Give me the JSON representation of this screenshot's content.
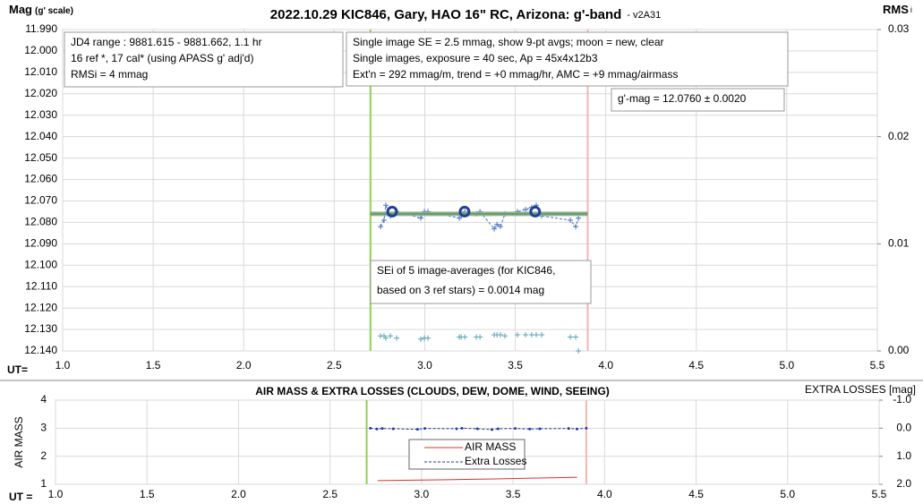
{
  "chart_data": [
    {
      "type": "line",
      "title": "2022.10.29 KIC846, Gary, HAO 16\" RC, Arizona: g'-band",
      "subtitle": "- v2A31",
      "y_label": "Mag",
      "y_label_sub": "(g' scale)",
      "y2_label": "RMS",
      "y2_label_sub": "i",
      "x_label": "UT=",
      "xlim": [
        1.0,
        5.5
      ],
      "xticks": [
        {
          "value": 1.0,
          "label": "1.0"
        },
        1.5,
        {
          "value": 2.0,
          "label": "2.0"
        },
        2.5,
        {
          "value": 3.0,
          "label": "3.0"
        },
        3.5,
        {
          "value": 4.0,
          "label": "4.0"
        },
        4.5,
        {
          "value": 5.0,
          "label": "5.0"
        },
        5.5
      ],
      "ylim": [
        12.14,
        11.99
      ],
      "yticks": [
        {
          "value": 11.99,
          "label": "11.990"
        },
        {
          "value": 12.0,
          "label": "12.000"
        },
        {
          "value": 12.01,
          "label": "12.010"
        },
        {
          "value": 12.02,
          "label": "12.020"
        },
        {
          "value": 12.03,
          "label": "12.030"
        },
        {
          "value": 12.04,
          "label": "12.040"
        },
        {
          "value": 12.05,
          "label": "12.050"
        },
        {
          "value": 12.06,
          "label": "12.060"
        },
        {
          "value": 12.07,
          "label": "12.070"
        },
        {
          "value": 12.08,
          "label": "12.080"
        },
        {
          "value": 12.09,
          "label": "12.090"
        },
        {
          "value": 12.1,
          "label": "12.100"
        },
        {
          "value": 12.11,
          "label": "12.110"
        },
        {
          "value": 12.12,
          "label": "12.120"
        },
        {
          "value": 12.13,
          "label": "12.130"
        },
        {
          "value": 12.14,
          "label": "12.140"
        }
      ],
      "y2lim": [
        0,
        0.03
      ],
      "y2ticks": [
        {
          "value": 0,
          "label": "0.00"
        },
        0.01,
        0.02,
        0.03
      ],
      "grid": true,
      "vlines": [
        {
          "value": 2.7,
          "color": "#92d050"
        },
        {
          "value": 3.9,
          "color": "#f4b4b4"
        }
      ],
      "series": [
        {
          "color": "#4472c4",
          "marker": "plus",
          "line": true,
          "dash": "3,2",
          "width": 1,
          "x": [
            2.756,
            2.775,
            2.785,
            2.81,
            2.845,
            2.978,
            2.998,
            3.018,
            3.191,
            3.201,
            3.221,
            3.285,
            3.305,
            3.384,
            3.399,
            3.418,
            3.443,
            3.512,
            3.557,
            3.591,
            3.616,
            3.646,
            3.804,
            3.834,
            3.849
          ],
          "values": [
            12.082,
            12.079,
            12.072,
            12.077,
            12.075,
            12.078,
            12.075,
            12.075,
            12.078,
            12.077,
            12.075,
            12.076,
            12.075,
            12.083,
            12.081,
            12.082,
            12.076,
            12.075,
            12.074,
            12.073,
            12.072,
            12.077,
            12.079,
            12.082,
            12.078
          ]
        },
        {
          "color": "#a6a6a6",
          "marker": "none",
          "line": true,
          "width": 5,
          "x": [
            2.7,
            3.9
          ],
          "values": [
            12.076,
            12.076
          ]
        },
        {
          "color": "#4caf50",
          "marker": "none",
          "line": true,
          "width": 2,
          "x": [
            2.7,
            3.9
          ],
          "values": [
            12.076,
            12.076
          ]
        },
        {
          "color": "#1f3f99",
          "marker": "circle",
          "line": false,
          "x": [
            2.82,
            3.22,
            3.61
          ],
          "values": [
            12.075,
            12.075,
            12.075
          ]
        },
        {
          "color": "#5ba3b5",
          "marker": "plus",
          "line": false,
          "axis": "y2",
          "x": [
            2.756,
            2.775,
            2.785,
            2.81,
            2.845,
            2.978,
            2.998,
            3.018,
            3.191,
            3.201,
            3.221,
            3.285,
            3.305,
            3.384,
            3.399,
            3.418,
            3.443,
            3.512,
            3.557,
            3.591,
            3.616,
            3.646,
            3.804,
            3.834,
            3.849
          ],
          "values": [
            0.0014,
            0.0014,
            0.0012,
            0.0014,
            0.0012,
            0.0011,
            0.0012,
            0.0012,
            0.0013,
            0.0013,
            0.0013,
            0.0013,
            0.0013,
            0.0015,
            0.0015,
            0.0015,
            0.0014,
            0.0015,
            0.0015,
            0.0015,
            0.0015,
            0.0015,
            0.0013,
            0.0013,
            0
          ]
        }
      ],
      "annotations": [
        {
          "lines": [
            "JD4 range : 9881.615 - 9881.662,  1.1 hr",
            "16 ref *, 17 cal* (using APASS g' adj'd)",
            "RMSi = 4 mmag"
          ]
        },
        {
          "lines": [
            "Single image SE = 2.5 mmag, show  9-pt avgs; moon = new, clear",
            "Single images, exposure = 40 sec, Ap = 45x4x12b3",
            "Ext'n = 292 mmag/m, trend = +0 mmag/hr, AMC = +9 mmag/airmass"
          ]
        },
        {
          "lines": [
            "g'-mag = 12.0760 ± 0.0020"
          ]
        },
        {
          "lines": [
            "SEi of 5 image-averages (for KIC846,",
            "based on 3 ref stars) = 0.0014 mag"
          ]
        }
      ]
    },
    {
      "type": "line",
      "title": "AIR MASS & EXTRA LOSSES (CLOUDS, DEW, DOME, WIND, SEEING)",
      "y_label": "AIR MASS",
      "y2_label": "EXTRA LOSSES [mag]",
      "x_label": "UT =",
      "xlim": [
        1.0,
        5.5
      ],
      "xticks": [
        {
          "value": 1.0,
          "label": "1.0"
        },
        1.5,
        {
          "value": 2.0,
          "label": "2.0"
        },
        2.5,
        {
          "value": 3.0,
          "label": "3.0"
        },
        3.5,
        {
          "value": 4.0,
          "label": "4.0"
        },
        4.5,
        {
          "value": 5.0,
          "label": "5.0"
        },
        5.5
      ],
      "ylim": [
        1,
        4
      ],
      "yticks": [
        1,
        2,
        3,
        4
      ],
      "y2lim": [
        2.0,
        -1.0
      ],
      "y2ticks": [
        {
          "value": -1.0,
          "label": "-1.0"
        },
        {
          "value": 0.0,
          "label": "0.0"
        },
        {
          "value": 1.0,
          "label": "1.0"
        },
        {
          "value": 2.0,
          "label": "2.0"
        }
      ],
      "grid": true,
      "vlines": [
        {
          "value": 2.7,
          "color": "#92d050"
        },
        {
          "value": 3.9,
          "color": "#f4b4b4"
        }
      ],
      "series": [
        {
          "name": "AIR MASS",
          "color": "#e0302a",
          "marker": "none",
          "line": true,
          "width": 1,
          "x": [
            2.76,
            3.0,
            3.2,
            3.4,
            3.6,
            3.85
          ],
          "values": [
            1.13,
            1.15,
            1.17,
            1.19,
            1.22,
            1.25
          ]
        },
        {
          "name": "Extra Losses",
          "color": "#1f3f99",
          "marker": "dot",
          "line": true,
          "dash": "3,2",
          "width": 1,
          "axis": "y2",
          "x": [
            2.72,
            2.756,
            2.785,
            2.845,
            2.978,
            3.018,
            3.191,
            3.221,
            3.305,
            3.384,
            3.418,
            3.512,
            3.591,
            3.646,
            3.804,
            3.849,
            3.9
          ],
          "values": [
            0.0,
            0.03,
            0.01,
            0.02,
            0.04,
            0.01,
            0.02,
            0.0,
            0.02,
            0.05,
            0.02,
            0.01,
            0.03,
            0.02,
            0.01,
            0.03,
            0.0
          ]
        }
      ],
      "legend": "center"
    }
  ]
}
